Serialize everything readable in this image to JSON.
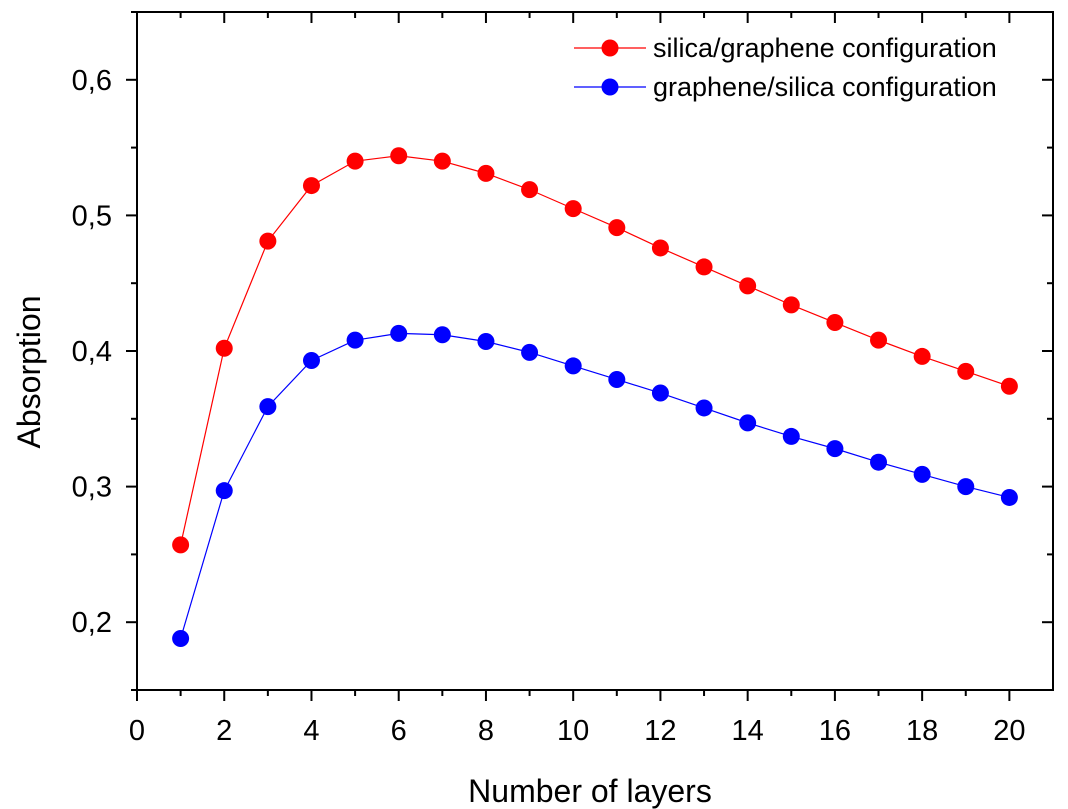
{
  "chart_data": {
    "type": "line",
    "xlabel": "Number of layers",
    "ylabel": "Absorption",
    "xlim": [
      0,
      21
    ],
    "ylim": [
      0.15,
      0.65
    ],
    "x_ticks": [
      0,
      2,
      4,
      6,
      8,
      10,
      12,
      14,
      16,
      18,
      20
    ],
    "x_tick_labels": [
      "0",
      "2",
      "4",
      "6",
      "8",
      "10",
      "12",
      "14",
      "16",
      "18",
      "20"
    ],
    "y_ticks": [
      0.2,
      0.3,
      0.4,
      0.5,
      0.6
    ],
    "y_tick_labels": [
      "0,2",
      "0,3",
      "0,4",
      "0,5",
      "0,6"
    ],
    "grid": false,
    "legend_position": "top-right",
    "x": [
      1,
      2,
      3,
      4,
      5,
      6,
      7,
      8,
      9,
      10,
      11,
      12,
      13,
      14,
      15,
      16,
      17,
      18,
      19,
      20
    ],
    "series": [
      {
        "name": "silica/graphene configuration",
        "color": "#ff0000",
        "values": [
          0.257,
          0.402,
          0.481,
          0.522,
          0.54,
          0.544,
          0.54,
          0.531,
          0.519,
          0.505,
          0.491,
          0.476,
          0.462,
          0.448,
          0.434,
          0.421,
          0.408,
          0.396,
          0.385,
          0.374
        ]
      },
      {
        "name": "graphene/silica configuration",
        "color": "#0000ff",
        "values": [
          0.188,
          0.297,
          0.359,
          0.393,
          0.408,
          0.413,
          0.412,
          0.407,
          0.399,
          0.389,
          0.379,
          0.369,
          0.358,
          0.347,
          0.337,
          0.328,
          0.318,
          0.309,
          0.3,
          0.292
        ]
      }
    ]
  }
}
